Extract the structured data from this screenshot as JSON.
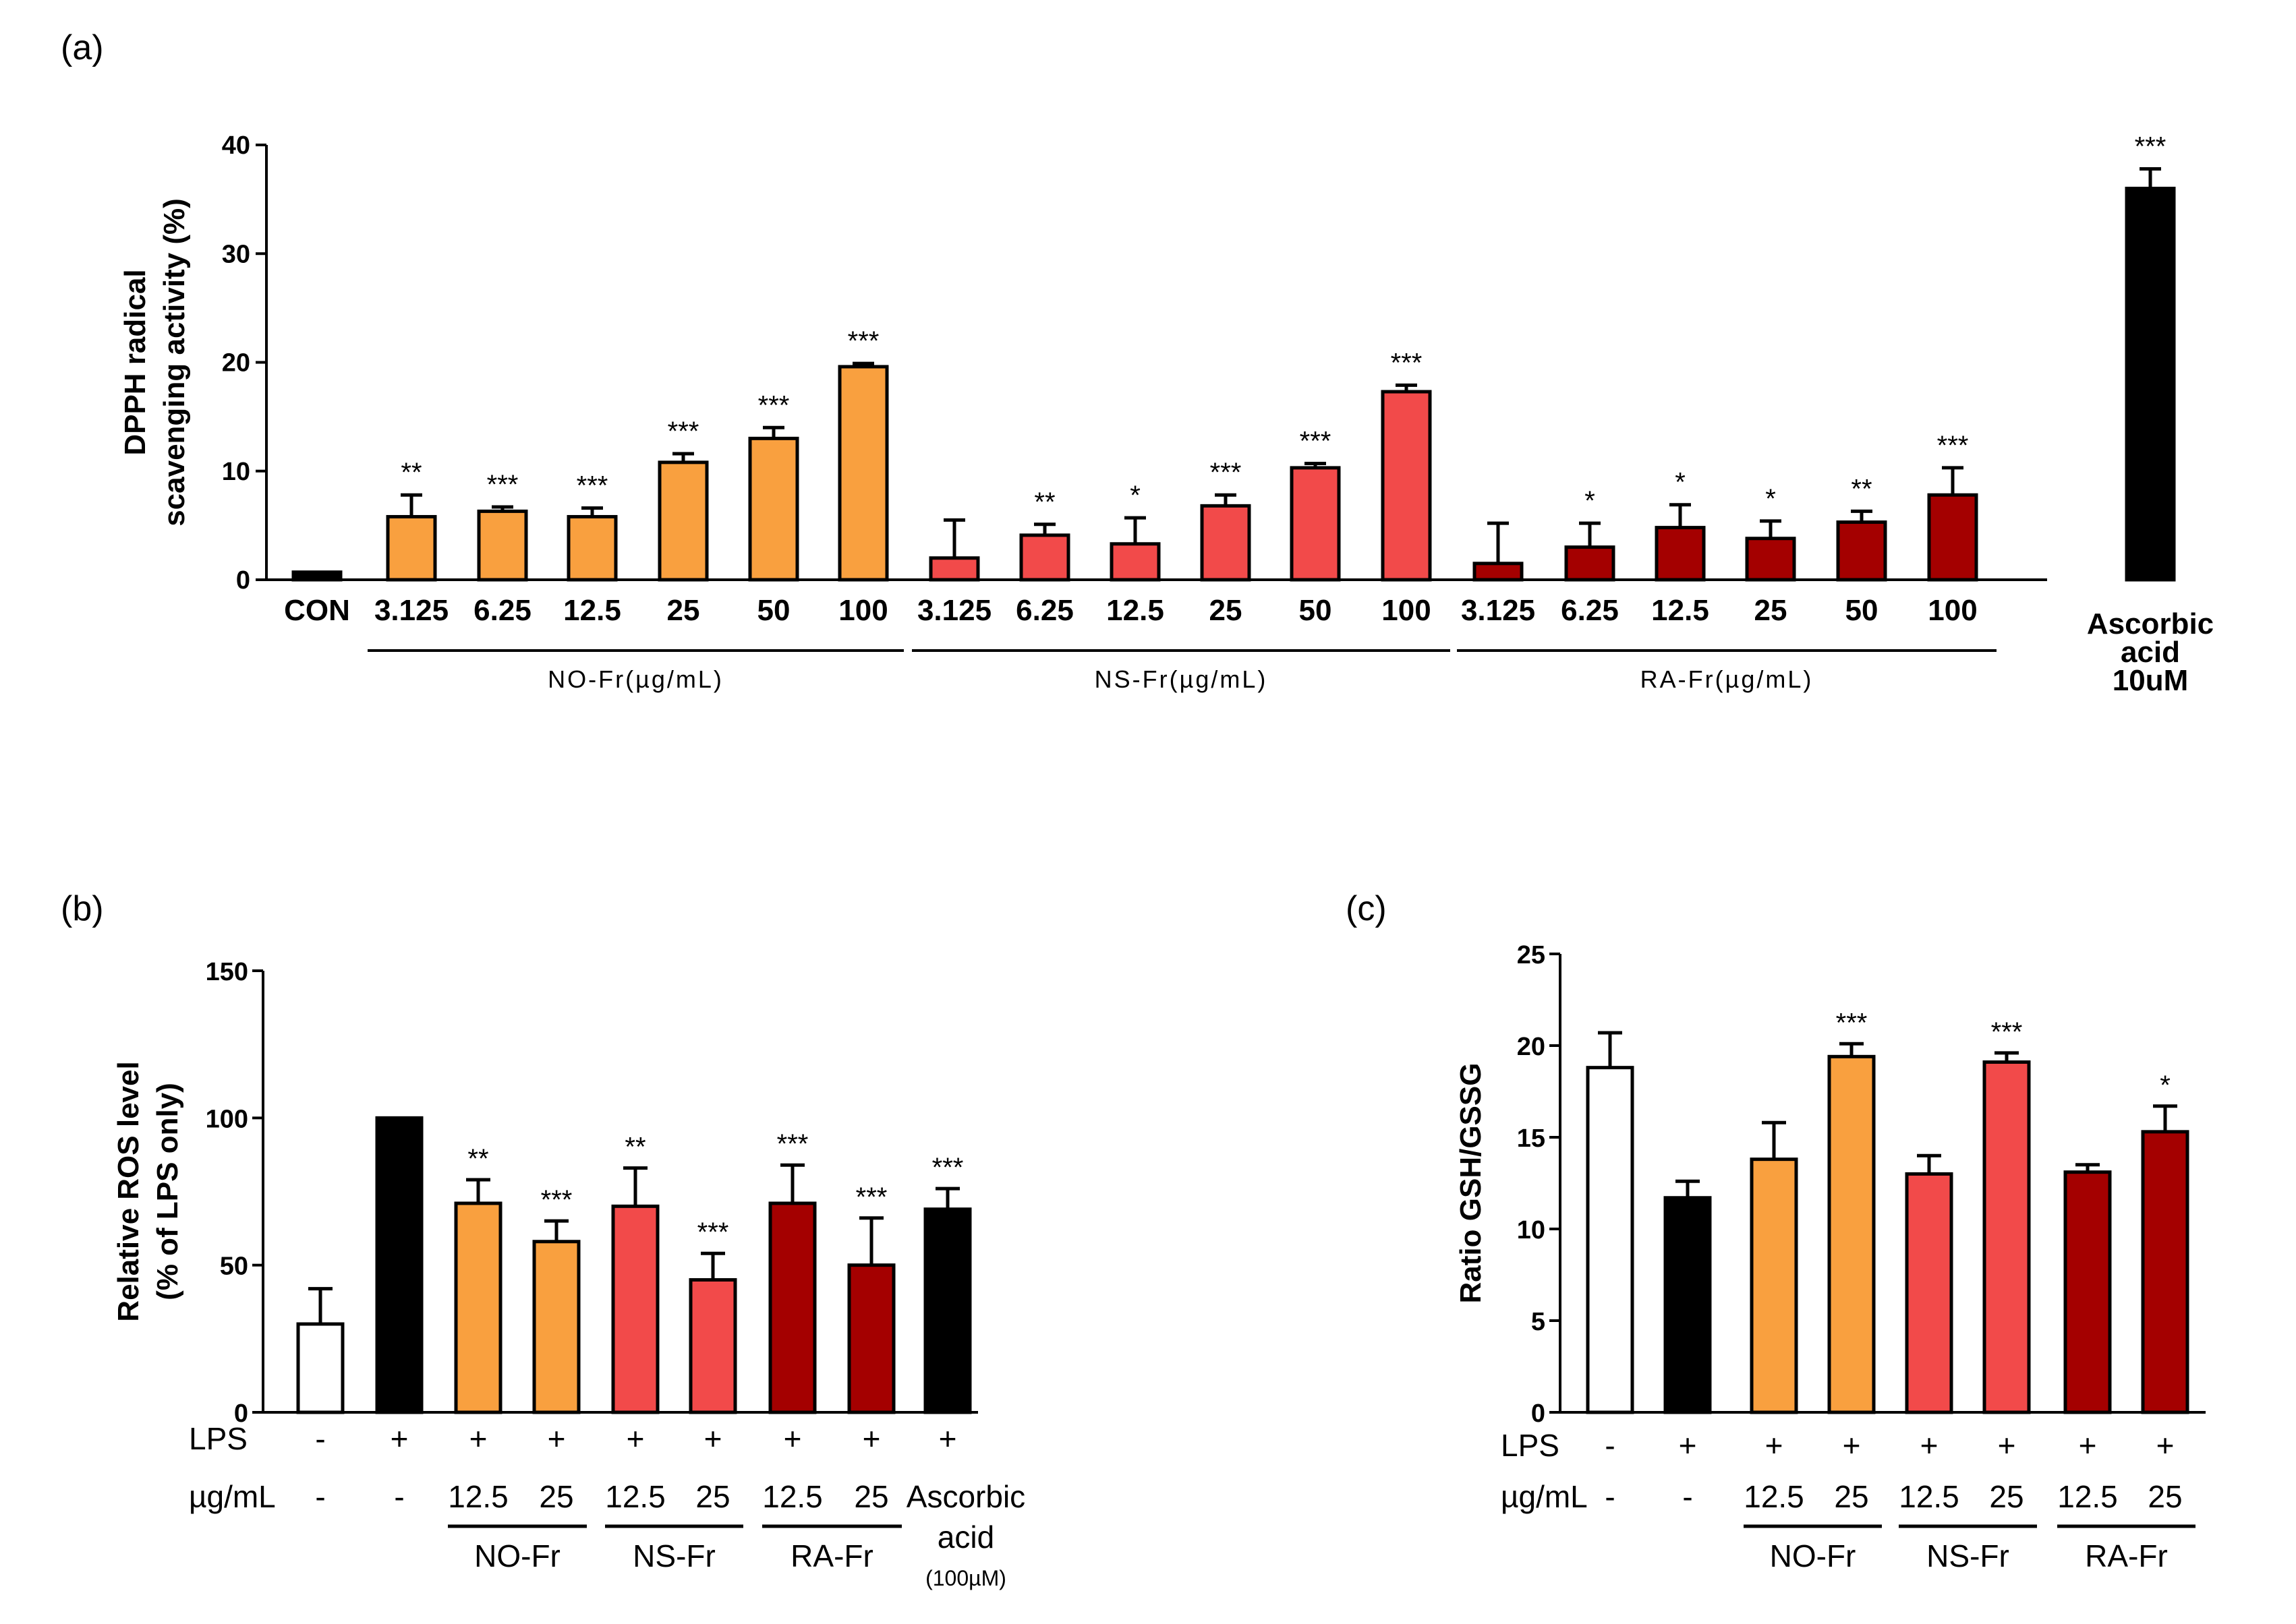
{
  "colors": {
    "orange": "#F9A03F",
    "red": "#F24A4A",
    "darkred": "#A40000",
    "black": "#000000",
    "white": "#FFFFFF"
  },
  "chart_data": [
    {
      "panel": "(a)",
      "type": "bar",
      "ylabel": [
        "DPPH radical",
        "scavenging activity (%)"
      ],
      "ylim": [
        0,
        40
      ],
      "yticks": [
        "0",
        "10",
        "20",
        "30",
        "40"
      ],
      "categories": [
        "CON",
        "3.125",
        "6.25",
        "12.5",
        "25",
        "50",
        "100",
        "3.125",
        "6.25",
        "12.5",
        "25",
        "50",
        "100",
        "3.125",
        "6.25",
        "12.5",
        "25",
        "50",
        "100",
        "Ascorbic acid 10uM"
      ],
      "category_lines": [
        "Ascorbic",
        "acid",
        "10uM"
      ],
      "groups": [
        {
          "label": "NO-Fr(µg/mL)"
        },
        {
          "label": "NS-Fr(µg/mL)"
        },
        {
          "label": "RA-Fr(µg/mL)"
        }
      ],
      "bars": [
        {
          "value": 0.7,
          "error": 0,
          "color": "black",
          "sig": ""
        },
        {
          "value": 5.8,
          "error": 2.0,
          "color": "orange",
          "sig": "**"
        },
        {
          "value": 6.3,
          "error": 0.4,
          "color": "orange",
          "sig": "***"
        },
        {
          "value": 5.8,
          "error": 0.8,
          "color": "orange",
          "sig": "***"
        },
        {
          "value": 10.8,
          "error": 0.8,
          "color": "orange",
          "sig": "***"
        },
        {
          "value": 13.0,
          "error": 1.0,
          "color": "orange",
          "sig": "***"
        },
        {
          "value": 19.6,
          "error": 0.3,
          "color": "orange",
          "sig": "***"
        },
        {
          "value": 2.0,
          "error": 3.5,
          "color": "red",
          "sig": ""
        },
        {
          "value": 4.1,
          "error": 1.0,
          "color": "red",
          "sig": "**"
        },
        {
          "value": 3.3,
          "error": 2.4,
          "color": "red",
          "sig": "*"
        },
        {
          "value": 6.8,
          "error": 1.0,
          "color": "red",
          "sig": "***"
        },
        {
          "value": 10.3,
          "error": 0.4,
          "color": "red",
          "sig": "***"
        },
        {
          "value": 17.3,
          "error": 0.6,
          "color": "red",
          "sig": "***"
        },
        {
          "value": 1.5,
          "error": 3.7,
          "color": "darkred",
          "sig": ""
        },
        {
          "value": 3.0,
          "error": 2.2,
          "color": "darkred",
          "sig": "*"
        },
        {
          "value": 4.8,
          "error": 2.1,
          "color": "darkred",
          "sig": "*"
        },
        {
          "value": 3.8,
          "error": 1.6,
          "color": "darkred",
          "sig": "*"
        },
        {
          "value": 5.3,
          "error": 1.0,
          "color": "darkred",
          "sig": "**"
        },
        {
          "value": 7.8,
          "error": 2.5,
          "color": "darkred",
          "sig": "***"
        },
        {
          "value": 36.0,
          "error": 1.8,
          "color": "black",
          "sig": "***"
        }
      ]
    },
    {
      "panel": "(b)",
      "type": "bar",
      "ylabel": [
        "Relative ROS level",
        "(% of LPS only)"
      ],
      "ylim": [
        0,
        150
      ],
      "yticks": [
        "0",
        "50",
        "100",
        "150"
      ],
      "row_labels": [
        "LPS",
        "µg/mL"
      ],
      "lps": [
        "-",
        "+",
        "+",
        "+",
        "+",
        "+",
        "+",
        "+",
        "+"
      ],
      "doses": [
        "-",
        "-",
        "12.5",
        "25",
        "12.5",
        "25",
        "12.5",
        "25",
        ""
      ],
      "groups": [
        "NO-Fr",
        "NS-Fr",
        "RA-Fr"
      ],
      "ascorbic_lines": [
        "Ascorbic",
        "acid",
        "(100µM)"
      ],
      "bars": [
        {
          "value": 30,
          "error": 12,
          "color": "white",
          "sig": ""
        },
        {
          "value": 100,
          "error": 0,
          "color": "black",
          "sig": ""
        },
        {
          "value": 71,
          "error": 8,
          "color": "orange",
          "sig": "**"
        },
        {
          "value": 58,
          "error": 7,
          "color": "orange",
          "sig": "***"
        },
        {
          "value": 70,
          "error": 13,
          "color": "red",
          "sig": "**"
        },
        {
          "value": 45,
          "error": 9,
          "color": "red",
          "sig": "***"
        },
        {
          "value": 71,
          "error": 13,
          "color": "darkred",
          "sig": "***"
        },
        {
          "value": 50,
          "error": 16,
          "color": "darkred",
          "sig": "***"
        },
        {
          "value": 69,
          "error": 7,
          "color": "black",
          "sig": "***"
        }
      ]
    },
    {
      "panel": "(c)",
      "type": "bar",
      "ylabel": [
        "Ratio GSH/GSSG"
      ],
      "ylim": [
        0,
        25
      ],
      "yticks": [
        "0",
        "5",
        "10",
        "15",
        "20",
        "25"
      ],
      "row_labels": [
        "LPS",
        "µg/mL"
      ],
      "lps": [
        "-",
        "+",
        "+",
        "+",
        "+",
        "+",
        "+",
        "+"
      ],
      "doses": [
        "-",
        "-",
        "12.5",
        "25",
        "12.5",
        "25",
        "12.5",
        "25"
      ],
      "groups": [
        "NO-Fr",
        "NS-Fr",
        "RA-Fr"
      ],
      "bars": [
        {
          "value": 18.8,
          "error": 1.9,
          "color": "white",
          "sig": ""
        },
        {
          "value": 11.7,
          "error": 0.9,
          "color": "black",
          "sig": ""
        },
        {
          "value": 13.8,
          "error": 2.0,
          "color": "orange",
          "sig": ""
        },
        {
          "value": 19.4,
          "error": 0.7,
          "color": "orange",
          "sig": "***"
        },
        {
          "value": 13.0,
          "error": 1.0,
          "color": "red",
          "sig": ""
        },
        {
          "value": 19.1,
          "error": 0.5,
          "color": "red",
          "sig": "***"
        },
        {
          "value": 13.1,
          "error": 0.4,
          "color": "darkred",
          "sig": ""
        },
        {
          "value": 15.3,
          "error": 1.4,
          "color": "darkred",
          "sig": "*"
        }
      ]
    }
  ]
}
